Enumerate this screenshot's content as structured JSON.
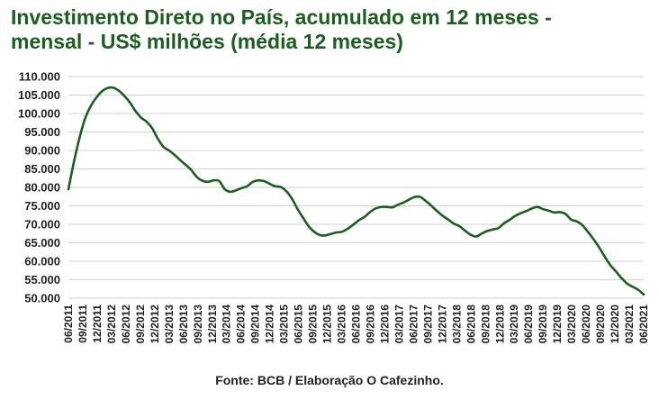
{
  "chart_data": {
    "type": "line",
    "title_line1": "Investimento Direto no País, acumulado em 12 meses -",
    "title_line2": "mensal - US$ milhões (média 12 meses)",
    "source": "Fonte: BCB / Elaboração O Cafezinho.",
    "x_tick_labels": [
      "06/2011",
      "09/2011",
      "12/2011",
      "03/2012",
      "06/2012",
      "09/2012",
      "12/2012",
      "03/2013",
      "06/2013",
      "09/2013",
      "12/2013",
      "03/2014",
      "06/2014",
      "09/2014",
      "12/2014",
      "03/2015",
      "06/2015",
      "09/2015",
      "12/2015",
      "03/2016",
      "06/2016",
      "09/2016",
      "12/2016",
      "03/2017",
      "06/2017",
      "09/2017",
      "12/2017",
      "03/2018",
      "06/2018",
      "09/2018",
      "12/2018",
      "03/2019",
      "06/2019",
      "09/2019",
      "12/2019",
      "03/2020",
      "06/2020",
      "09/2020",
      "12/2020",
      "03/2021",
      "06/2021"
    ],
    "y_tick_labels": [
      "50.000",
      "55.000",
      "60.000",
      "65.000",
      "70.000",
      "75.000",
      "80.000",
      "85.000",
      "90.000",
      "95.000",
      "100.000",
      "105.000",
      "110.000"
    ],
    "ylim": [
      50000,
      110000
    ],
    "grid": true,
    "line_color": "#1b5e20",
    "series": [
      {
        "values": [
          79500,
          87000,
          93500,
          98700,
          102000,
          104300,
          106000,
          106900,
          107000,
          106200,
          104800,
          103000,
          100700,
          98900,
          97800,
          96000,
          93200,
          91000,
          90000,
          88800,
          87400,
          86100,
          84700,
          82800,
          81800,
          81500,
          81900,
          81700,
          79500,
          78800,
          79200,
          79800,
          80300,
          81500,
          81900,
          81700,
          81000,
          80300,
          80100,
          79000,
          77000,
          74200,
          71800,
          69500,
          68000,
          67100,
          67000,
          67400,
          67800,
          68000,
          68800,
          69900,
          71100,
          72000,
          73300,
          74300,
          74700,
          74700,
          74600,
          75300,
          75900,
          76700,
          77400,
          77400,
          76300,
          75000,
          73600,
          72300,
          71300,
          70200,
          69500,
          68300,
          67200,
          66700,
          67500,
          68200,
          68600,
          69000,
          70300,
          71200,
          72300,
          73000,
          73600,
          74300,
          74700,
          74100,
          73700,
          73200,
          73300,
          72800,
          71300,
          70800,
          69800,
          68000,
          66000,
          63800,
          61300,
          59000,
          57300,
          55500,
          54000,
          53100,
          52300,
          51000
        ]
      }
    ]
  }
}
